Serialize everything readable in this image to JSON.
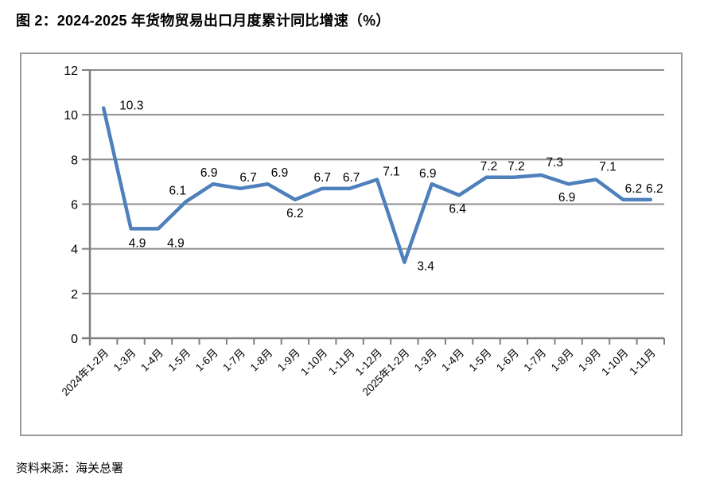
{
  "header": {
    "title": "图 2：2024-2025 年货物贸易出口月度累计同比增速（%）"
  },
  "footer": {
    "source": "资料来源：海关总署"
  },
  "chart_data": {
    "type": "line",
    "title": "2024-2025 年货物贸易出口月度累计同比增速（%）",
    "categories": [
      "2024年1-2月",
      "1-3月",
      "1-4月",
      "1-5月",
      "1-6月",
      "1-7月",
      "1-8月",
      "1-9月",
      "1-10月",
      "1-11月",
      "1-12月",
      "2025年1-2月",
      "1-3月",
      "1-4月",
      "1-5月",
      "1-6月",
      "1-7月",
      "1-8月",
      "1-9月",
      "1-10月",
      "1-11月"
    ],
    "values": [
      10.3,
      4.9,
      4.9,
      6.1,
      6.9,
      6.7,
      6.9,
      6.2,
      6.7,
      6.7,
      7.1,
      3.4,
      6.9,
      6.4,
      7.2,
      7.2,
      7.3,
      6.9,
      7.1,
      6.2,
      6.2
    ],
    "xlabel": "",
    "ylabel": "",
    "ylim": [
      0,
      12
    ],
    "yticks": [
      0,
      2,
      4,
      6,
      8,
      10,
      12
    ],
    "grid": true,
    "legend": "none",
    "data_labels": true,
    "colors": {
      "line": "#4E80BC",
      "grid": "#8C8C8C",
      "axis": "#7F7F7F",
      "frame": "#999999",
      "text": "#000000"
    }
  }
}
